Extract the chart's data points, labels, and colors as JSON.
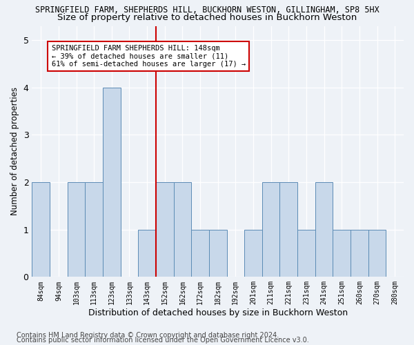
{
  "title": "SPRINGFIELD FARM, SHEPHERDS HILL, BUCKHORN WESTON, GILLINGHAM, SP8 5HX",
  "subtitle": "Size of property relative to detached houses in Buckhorn Weston",
  "xlabel": "Distribution of detached houses by size in Buckhorn Weston",
  "ylabel": "Number of detached properties",
  "bins": [
    "84sqm",
    "94sqm",
    "103sqm",
    "113sqm",
    "123sqm",
    "133sqm",
    "143sqm",
    "152sqm",
    "162sqm",
    "172sqm",
    "182sqm",
    "192sqm",
    "201sqm",
    "211sqm",
    "221sqm",
    "231sqm",
    "241sqm",
    "251sqm",
    "260sqm",
    "270sqm",
    "280sqm"
  ],
  "bar_heights": [
    2,
    0,
    2,
    2,
    4,
    0,
    1,
    2,
    2,
    1,
    1,
    0,
    1,
    2,
    2,
    1,
    2,
    1,
    1,
    1,
    0
  ],
  "bar_color": "#c8d8ea",
  "bar_edge_color": "#5b8bb5",
  "vline_color": "#cc0000",
  "annotation_text": "SPRINGFIELD FARM SHEPHERDS HILL: 148sqm\n← 39% of detached houses are smaller (11)\n61% of semi-detached houses are larger (17) →",
  "annotation_box_color": "white",
  "annotation_box_edge": "#cc0000",
  "ylim": [
    0,
    5.3
  ],
  "yticks": [
    0,
    1,
    2,
    3,
    4,
    5
  ],
  "footer_line1": "Contains HM Land Registry data © Crown copyright and database right 2024.",
  "footer_line2": "Contains public sector information licensed under the Open Government Licence v3.0.",
  "background_color": "#eef2f7",
  "plot_background": "#eef2f7",
  "title_fontsize": 8.5,
  "subtitle_fontsize": 9.5,
  "xlabel_fontsize": 9,
  "ylabel_fontsize": 8.5,
  "footer_fontsize": 7,
  "vline_bin_index": 7
}
